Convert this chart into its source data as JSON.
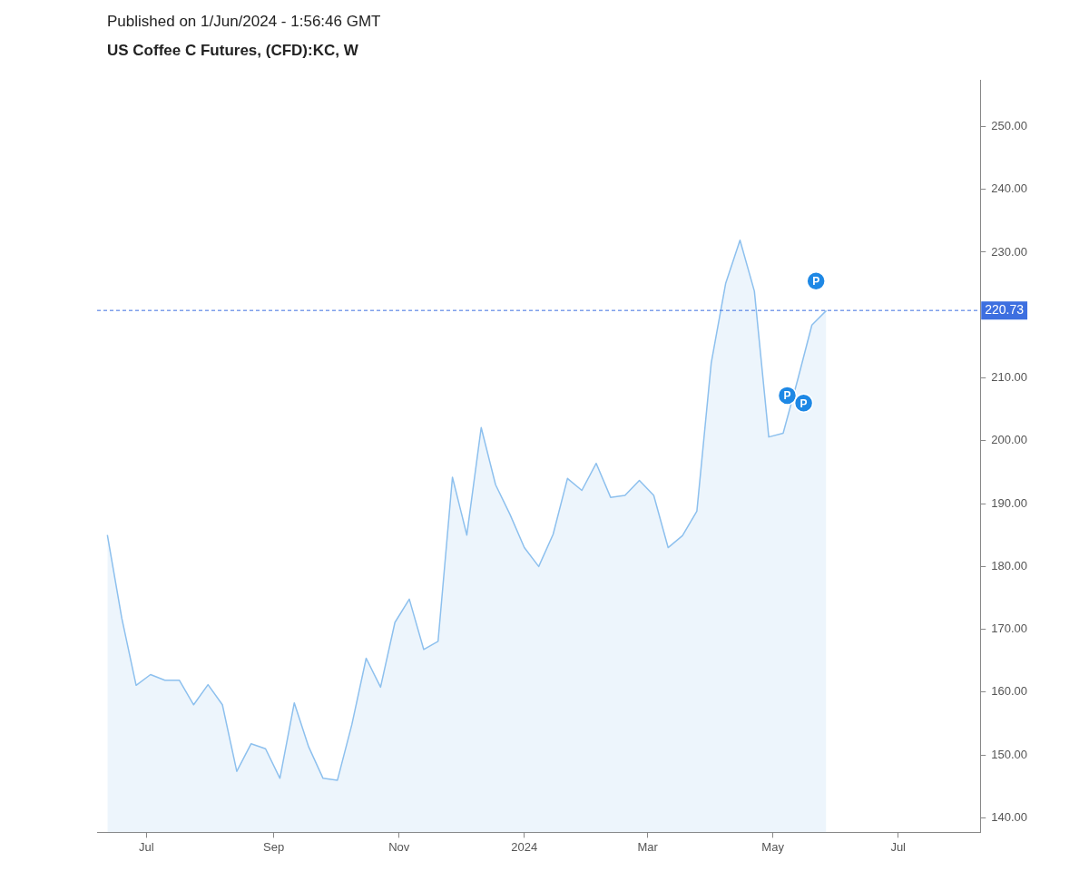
{
  "chart_data": {
    "type": "area",
    "subtitle": "Published on 1/Jun/2024 - 1:56:46 GMT",
    "title": "US Coffee C Futures, (CFD):KC, W",
    "x": [
      "2023-06-12",
      "2023-06-19",
      "2023-06-26",
      "2023-07-03",
      "2023-07-10",
      "2023-07-17",
      "2023-07-24",
      "2023-07-31",
      "2023-08-07",
      "2023-08-14",
      "2023-08-21",
      "2023-08-28",
      "2023-09-04",
      "2023-09-11",
      "2023-09-18",
      "2023-09-25",
      "2023-10-02",
      "2023-10-09",
      "2023-10-16",
      "2023-10-23",
      "2023-10-30",
      "2023-11-06",
      "2023-11-13",
      "2023-11-20",
      "2023-11-27",
      "2023-12-04",
      "2023-12-11",
      "2023-12-18",
      "2023-12-25",
      "2024-01-01",
      "2024-01-08",
      "2024-01-15",
      "2024-01-22",
      "2024-01-29",
      "2024-02-05",
      "2024-02-12",
      "2024-02-19",
      "2024-02-26",
      "2024-03-04",
      "2024-03-11",
      "2024-03-18",
      "2024-03-25",
      "2024-04-01",
      "2024-04-08",
      "2024-04-15",
      "2024-04-22",
      "2024-04-29",
      "2024-05-06",
      "2024-05-13",
      "2024-05-20",
      "2024-05-27"
    ],
    "series": [
      {
        "color": "#8dc0ee",
        "values": [
          185.0,
          171.8,
          161.1,
          162.8,
          161.9,
          161.9,
          158.0,
          161.2,
          158.0,
          147.4,
          151.8,
          151.0,
          146.3,
          158.3,
          151.3,
          146.3,
          146.0,
          154.8,
          165.4,
          160.8,
          171.1,
          174.8,
          166.8,
          168.1,
          194.2,
          185.0,
          202.1,
          193.0,
          188.3,
          183.0,
          180.0,
          185.1,
          194.0,
          192.1,
          196.4,
          191.0,
          191.3,
          193.7,
          191.3,
          183.0,
          184.9,
          188.8,
          212.4,
          225.0,
          231.9,
          223.8,
          200.6,
          201.2,
          209.6,
          218.4,
          220.7
        ]
      }
    ],
    "xlim": [
      "2023-06-07",
      "2024-08-10"
    ],
    "xticks": [
      {
        "value": "2023-07-01",
        "label": "Jul"
      },
      {
        "value": "2023-09-01",
        "label": "Sep"
      },
      {
        "value": "2023-11-01",
        "label": "Nov"
      },
      {
        "value": "2024-01-01",
        "label": "2024"
      },
      {
        "value": "2024-03-01",
        "label": "Mar"
      },
      {
        "value": "2024-05-01",
        "label": "May"
      },
      {
        "value": "2024-07-01",
        "label": "Jul"
      }
    ],
    "ylim": [
      137.7,
      257.3
    ],
    "yticks": [
      {
        "value": 140,
        "label": "140.00"
      },
      {
        "value": 150,
        "label": "150.00"
      },
      {
        "value": 160,
        "label": "160.00"
      },
      {
        "value": 170,
        "label": "170.00"
      },
      {
        "value": 180,
        "label": "180.00"
      },
      {
        "value": 190,
        "label": "190.00"
      },
      {
        "value": 200,
        "label": "200.00"
      },
      {
        "value": 210,
        "label": "210.00"
      },
      {
        "value": 230,
        "label": "230.00"
      },
      {
        "value": 240,
        "label": "240.00"
      },
      {
        "value": 250,
        "label": "250.00"
      }
    ],
    "ref_lines": [
      {
        "axis": "y",
        "value": 220.73,
        "label": "220.73",
        "color": "#3d6fe0",
        "line_style": "dashed"
      }
    ],
    "annotations": [
      {
        "text": "P",
        "x": "2024-05-22",
        "y": 225.4
      },
      {
        "text": "P",
        "x": "2024-05-08",
        "y": 207.2
      },
      {
        "text": "P",
        "x": "2024-05-16",
        "y": 206.0
      }
    ],
    "grid": false,
    "legend": false
  }
}
